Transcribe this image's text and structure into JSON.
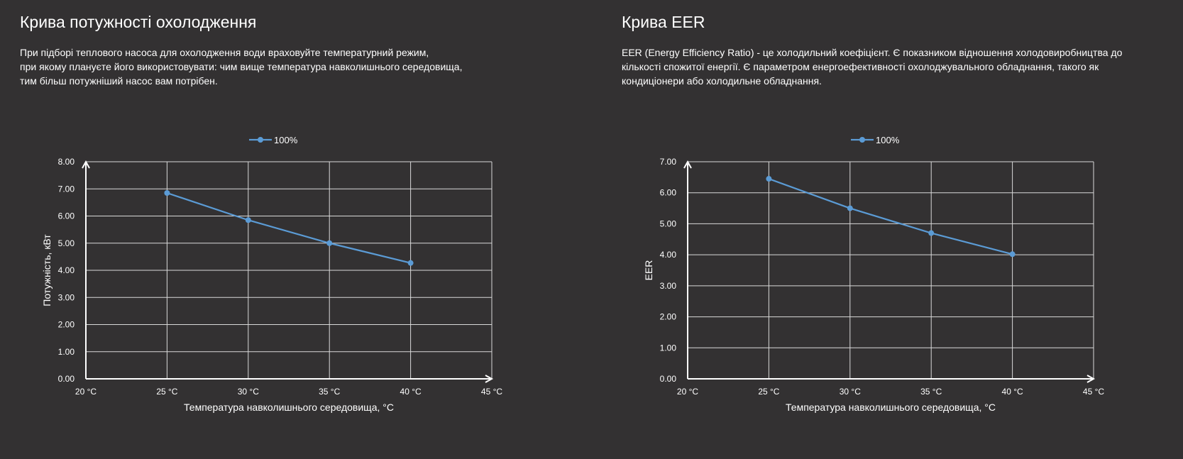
{
  "sections": [
    {
      "title": "Крива потужності охолодження",
      "description": [
        "При підборі теплового насоса для охолодження води враховуйте температурний режим,",
        "при якому плануєте його використовувати: чим вище температура навколишнього середовища,",
        "тим більш потужніший насос вам потрібен."
      ]
    },
    {
      "title": "Крива EER",
      "description": [
        "EER (Energy Efficiency Ratio) - це холодильний коефіцієнт. Є показником відношення холодовиробництва до",
        "кількості спожитої енергії. Є параметром енергоефективності охолоджувального обладнання, такого як",
        "кондиціонери або холодильне обладнання."
      ]
    }
  ],
  "chart_data": [
    {
      "type": "line",
      "legend_position": "top-center",
      "grid": true,
      "x": [
        25,
        30,
        35,
        40
      ],
      "xlim": [
        20,
        45
      ],
      "xticks": [
        "20 °C",
        "25 °C",
        "30 °C",
        "35 °C",
        "40 °C",
        "45 °C"
      ],
      "xlabel": "Температура навколишнього середовища, °C",
      "ylabel": "Потужність, кВт",
      "ylim": [
        0,
        8
      ],
      "yticks": [
        "0.00",
        "1.00",
        "2.00",
        "3.00",
        "4.00",
        "5.00",
        "6.00",
        "7.00",
        "8.00"
      ],
      "series": [
        {
          "name": "100%",
          "values": [
            6.85,
            5.85,
            5.0,
            4.27
          ]
        }
      ],
      "color": "#5b9bd5"
    },
    {
      "type": "line",
      "legend_position": "top-center",
      "grid": true,
      "x": [
        25,
        30,
        35,
        40
      ],
      "xlim": [
        20,
        45
      ],
      "xticks": [
        "20 °C",
        "25 °C",
        "30 °C",
        "35 °C",
        "40 °C",
        "45 °C"
      ],
      "xlabel": "Температура навколишнього середовища, °C",
      "ylabel": "EER",
      "ylim": [
        0,
        7
      ],
      "yticks": [
        "0.00",
        "1.00",
        "2.00",
        "3.00",
        "4.00",
        "5.00",
        "6.00",
        "7.00"
      ],
      "series": [
        {
          "name": "100%",
          "values": [
            6.45,
            5.5,
            4.7,
            4.02
          ]
        }
      ],
      "color": "#5b9bd5"
    }
  ]
}
